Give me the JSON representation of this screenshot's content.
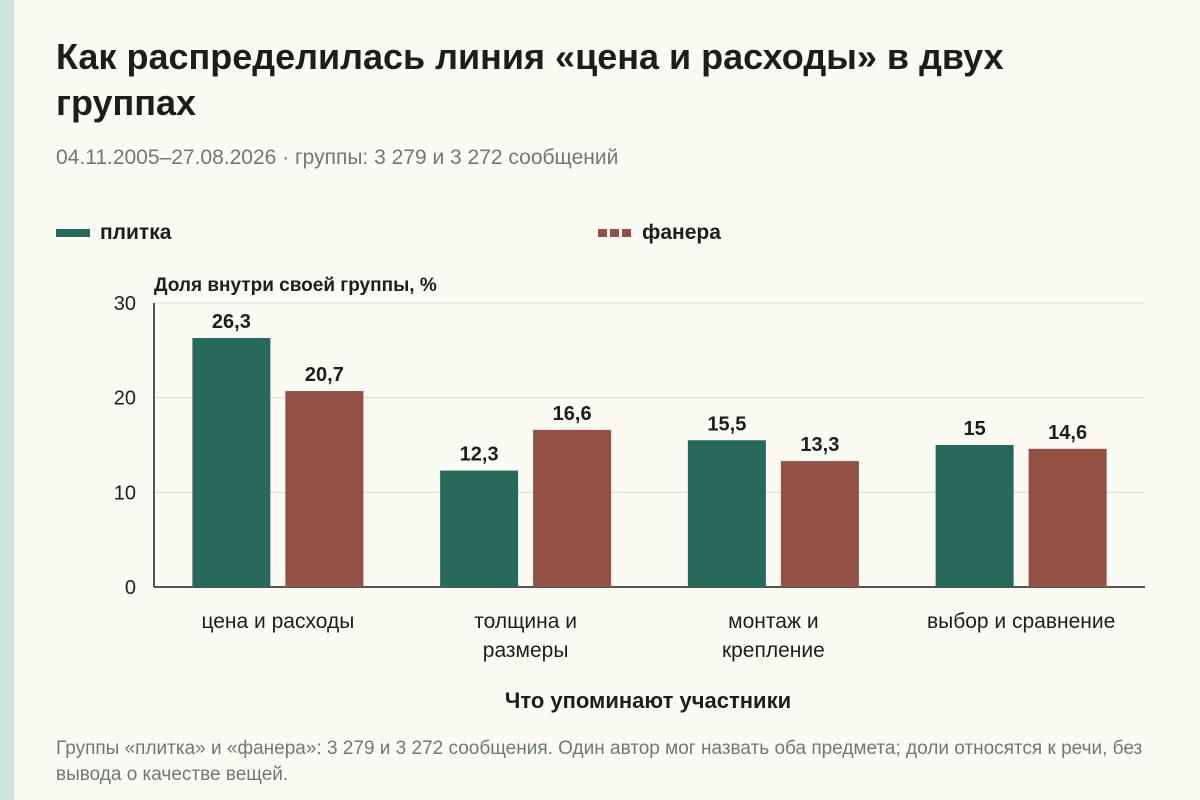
{
  "title": "Как распределилась линия «цена и расходы» в двух группах",
  "subtitle": "04.11.2005–27.08.2026 · группы: 3 279 и 3 272 сообщений",
  "footnote": "Группы «плитка» и «фанера»: 3 279 и 3 272 сообщения. Один автор мог назвать оба предмета; доли относятся к речи, без вывода о качестве вещей.",
  "chart_data": {
    "type": "bar",
    "ylabel": "Доля внутри своей группы, %",
    "xlabel": "Что упоминают участники",
    "ylim": [
      0,
      30
    ],
    "yticks": [
      0,
      10,
      20,
      30
    ],
    "grid": true,
    "legend_position": "top",
    "categories": [
      [
        "цена и расходы"
      ],
      [
        "толщина и",
        "размеры"
      ],
      [
        "монтаж и",
        "крепление"
      ],
      [
        "выбор и сравнение"
      ]
    ],
    "series": [
      {
        "name": "плитка",
        "color": "#27695a",
        "values": [
          26.3,
          12.3,
          15.5,
          15
        ],
        "labels": [
          "26,3",
          "12,3",
          "15,5",
          "15"
        ]
      },
      {
        "name": "фанера",
        "color": "#935045",
        "values": [
          20.7,
          16.6,
          13.3,
          14.6
        ],
        "labels": [
          "20,7",
          "16,6",
          "13,3",
          "14,6"
        ]
      }
    ]
  }
}
